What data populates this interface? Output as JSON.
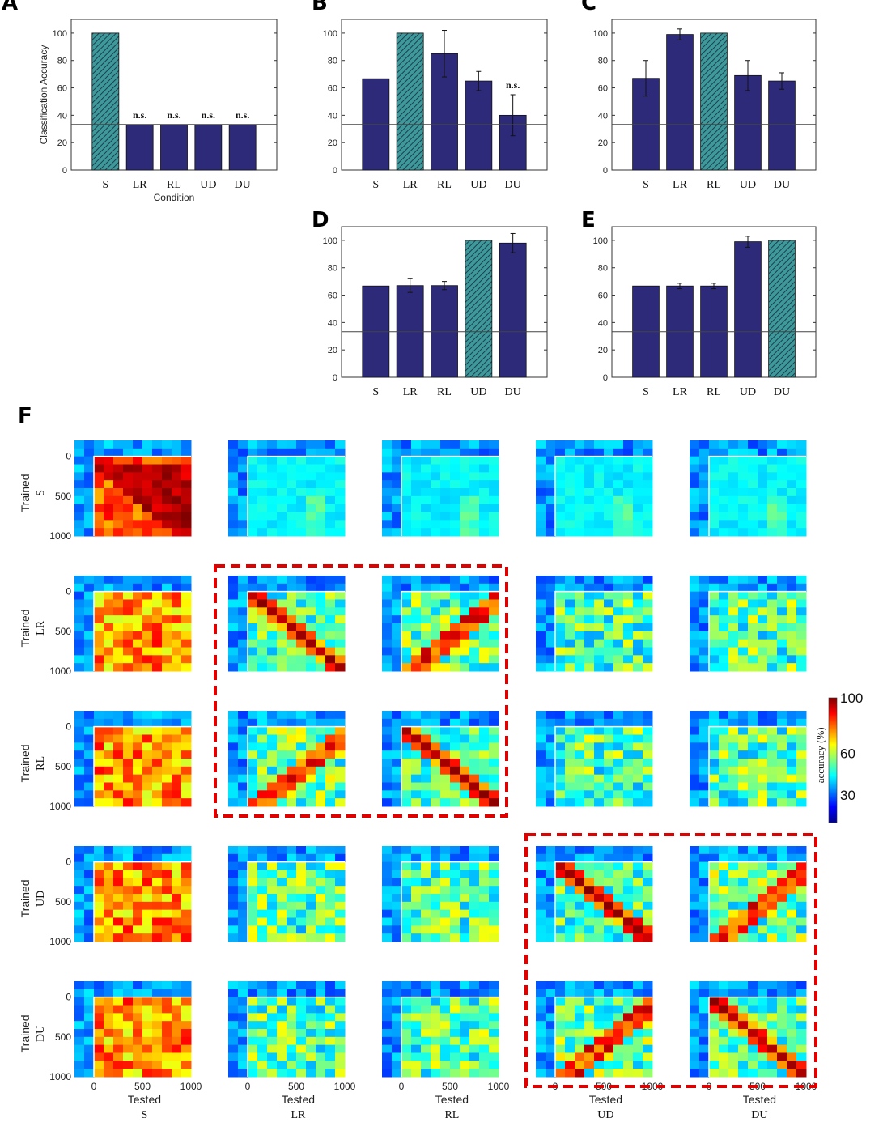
{
  "panel_letters": {
    "A": "A",
    "B": "B",
    "C": "C",
    "D": "D",
    "E": "E",
    "F": "F"
  },
  "colors": {
    "bar": "#2e2a7a",
    "trained_bar_bg": "#3e9a9a",
    "chance_line": "#444444",
    "highlight_box": "#e00000"
  },
  "chart_data": [
    {
      "panel": "A",
      "type": "bar",
      "categories": [
        "S",
        "LR",
        "RL",
        "UD",
        "DU"
      ],
      "values": [
        100,
        33,
        33,
        33,
        33
      ],
      "errors": [
        0,
        0,
        0,
        0,
        0
      ],
      "hatched": [
        true,
        false,
        false,
        false,
        false
      ],
      "annotations": [
        "",
        "n.s.",
        "n.s.",
        "n.s.",
        "n.s."
      ],
      "chance_level": 33.3,
      "ylim": [
        0,
        110
      ],
      "yticks": [
        0,
        20,
        40,
        60,
        80,
        100
      ],
      "xlabel": "Condition",
      "ylabel": "Classification Accuracy"
    },
    {
      "panel": "B",
      "type": "bar",
      "categories": [
        "S",
        "LR",
        "RL",
        "UD",
        "DU"
      ],
      "values": [
        66.7,
        100,
        85,
        65,
        40
      ],
      "errors": [
        0,
        0,
        17,
        7,
        15
      ],
      "hatched": [
        false,
        true,
        false,
        false,
        false
      ],
      "annotations": [
        "",
        "",
        "",
        "",
        "n.s."
      ],
      "chance_level": 33.3,
      "ylim": [
        0,
        110
      ],
      "yticks": [
        0,
        20,
        40,
        60,
        80,
        100
      ],
      "xlabel": "",
      "ylabel": ""
    },
    {
      "panel": "C",
      "type": "bar",
      "categories": [
        "S",
        "LR",
        "RL",
        "UD",
        "DU"
      ],
      "values": [
        67,
        99,
        100,
        69,
        65
      ],
      "errors": [
        13,
        4,
        0,
        11,
        6
      ],
      "hatched": [
        false,
        false,
        true,
        false,
        false
      ],
      "annotations": [
        "",
        "",
        "",
        "",
        ""
      ],
      "chance_level": 33.3,
      "ylim": [
        0,
        110
      ],
      "yticks": [
        0,
        20,
        40,
        60,
        80,
        100
      ],
      "xlabel": "",
      "ylabel": ""
    },
    {
      "panel": "D",
      "type": "bar",
      "categories": [
        "S",
        "LR",
        "RL",
        "UD",
        "DU"
      ],
      "values": [
        66.7,
        67,
        67,
        100,
        98
      ],
      "errors": [
        0,
        5,
        3,
        0,
        7
      ],
      "hatched": [
        false,
        false,
        false,
        true,
        false
      ],
      "annotations": [
        "",
        "",
        "",
        "",
        ""
      ],
      "chance_level": 33.3,
      "ylim": [
        0,
        110
      ],
      "yticks": [
        0,
        20,
        40,
        60,
        80,
        100
      ],
      "xlabel": "",
      "ylabel": ""
    },
    {
      "panel": "E",
      "type": "bar",
      "categories": [
        "S",
        "LR",
        "RL",
        "UD",
        "DU"
      ],
      "values": [
        66.7,
        66.7,
        66.7,
        99,
        100
      ],
      "errors": [
        0,
        2,
        2,
        4,
        0
      ],
      "hatched": [
        false,
        false,
        false,
        false,
        true
      ],
      "annotations": [
        "",
        "",
        "",
        "",
        ""
      ],
      "chance_level": 33.3,
      "ylim": [
        0,
        110
      ],
      "yticks": [
        0,
        20,
        40,
        60,
        80,
        100
      ],
      "xlabel": "",
      "ylabel": ""
    },
    {
      "panel": "F",
      "type": "heatmap",
      "rows": [
        "S",
        "LR",
        "RL",
        "UD",
        "DU"
      ],
      "cols": [
        "S",
        "LR",
        "RL",
        "UD",
        "DU"
      ],
      "row_prefix": "Trained",
      "col_prefix": "Tested",
      "axis_ticks": [
        "0",
        "500",
        "1000"
      ],
      "colorbar": {
        "label": "accuracy (%)",
        "ticks": [
          30,
          60,
          100
        ],
        "range": [
          10,
          100
        ],
        "colormap": "jet"
      },
      "highlight_groups": [
        {
          "rows": [
            "LR",
            "RL"
          ],
          "cols": [
            "LR",
            "RL"
          ]
        },
        {
          "rows": [
            "UD",
            "DU"
          ],
          "cols": [
            "UD",
            "DU"
          ]
        }
      ]
    }
  ]
}
